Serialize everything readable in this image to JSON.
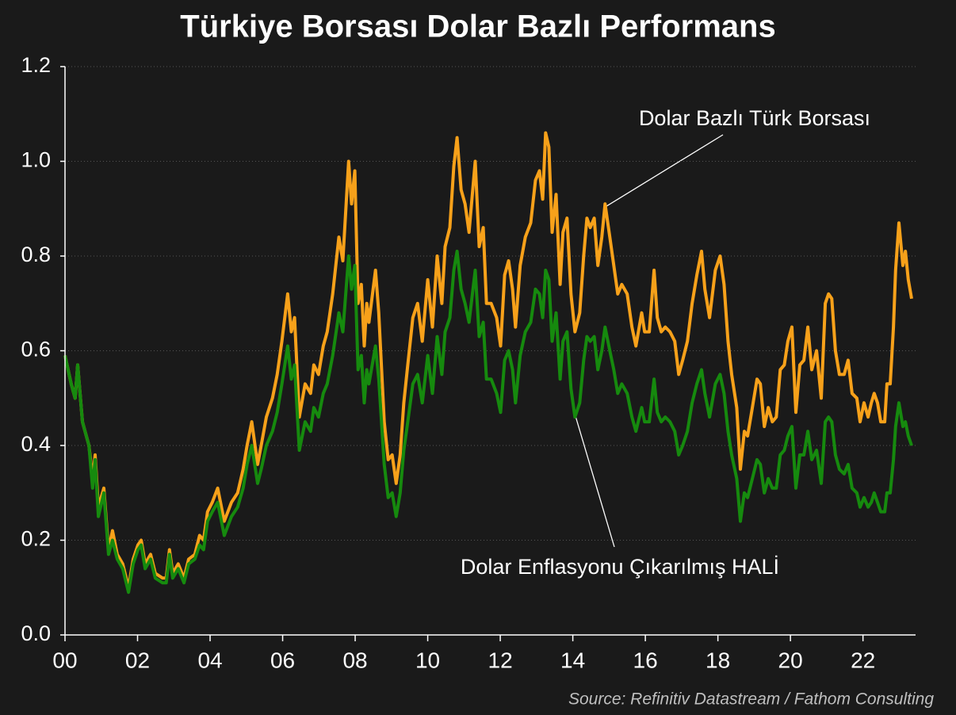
{
  "chart_data": {
    "type": "line",
    "title": "Türkiye Borsası Dolar Bazlı Performans",
    "source": "Source: Refinitiv Datastream / Fathom Consulting",
    "x": [
      2000.0,
      2000.17,
      2000.28,
      2000.35,
      2000.48,
      2000.66,
      2000.76,
      2000.83,
      2000.92,
      2001.07,
      2001.2,
      2001.31,
      2001.44,
      2001.59,
      2001.75,
      2001.88,
      2002.01,
      2002.1,
      2002.21,
      2002.36,
      2002.49,
      2002.69,
      2002.79,
      2002.88,
      2002.97,
      2003.12,
      2003.28,
      2003.41,
      2003.58,
      2003.71,
      2003.82,
      2003.93,
      2004.06,
      2004.21,
      2004.39,
      2004.59,
      2004.76,
      2004.91,
      2005.02,
      2005.15,
      2005.31,
      2005.41,
      2005.55,
      2005.72,
      2005.85,
      2005.98,
      2006.14,
      2006.24,
      2006.33,
      2006.46,
      2006.62,
      2006.77,
      2006.86,
      2006.99,
      2007.12,
      2007.23,
      2007.38,
      2007.55,
      2007.66,
      2007.82,
      2007.9,
      2007.99,
      2008.08,
      2008.17,
      2008.25,
      2008.32,
      2008.38,
      2008.56,
      2008.65,
      2008.8,
      2008.91,
      2009.02,
      2009.13,
      2009.24,
      2009.34,
      2009.45,
      2009.59,
      2009.72,
      2009.85,
      2010.0,
      2010.13,
      2010.26,
      2010.39,
      2010.48,
      2010.61,
      2010.72,
      2010.81,
      2010.92,
      2011.03,
      2011.14,
      2011.31,
      2011.42,
      2011.53,
      2011.62,
      2011.75,
      2011.9,
      2012.01,
      2012.12,
      2012.23,
      2012.34,
      2012.42,
      2012.55,
      2012.69,
      2012.84,
      2012.97,
      2013.08,
      2013.17,
      2013.25,
      2013.34,
      2013.43,
      2013.54,
      2013.65,
      2013.73,
      2013.84,
      2013.95,
      2014.06,
      2014.19,
      2014.3,
      2014.39,
      2014.48,
      2014.59,
      2014.69,
      2014.8,
      2014.89,
      2015.02,
      2015.13,
      2015.24,
      2015.35,
      2015.5,
      2015.63,
      2015.74,
      2015.9,
      2015.98,
      2016.11,
      2016.24,
      2016.33,
      2016.44,
      2016.55,
      2016.68,
      2016.81,
      2016.92,
      2017.03,
      2017.16,
      2017.29,
      2017.42,
      2017.55,
      2017.64,
      2017.77,
      2017.93,
      2018.06,
      2018.17,
      2018.28,
      2018.38,
      2018.52,
      2018.62,
      2018.73,
      2018.82,
      2018.95,
      2019.08,
      2019.17,
      2019.28,
      2019.39,
      2019.5,
      2019.61,
      2019.72,
      2019.83,
      2019.93,
      2020.04,
      2020.15,
      2020.26,
      2020.37,
      2020.48,
      2020.59,
      2020.72,
      2020.85,
      2020.96,
      2021.05,
      2021.14,
      2021.24,
      2021.35,
      2021.48,
      2021.59,
      2021.7,
      2021.83,
      2021.92,
      2022.03,
      2022.14,
      2022.23,
      2022.31,
      2022.4,
      2022.49,
      2022.6,
      2022.66,
      2022.75,
      2022.84,
      2022.9,
      2022.99,
      2023.1,
      2023.17,
      2023.25,
      2023.34
    ],
    "series": [
      {
        "name": "Dolar Bazlı Türk Borsası",
        "color": "#f7a11a",
        "values": [
          0.59,
          0.53,
          0.5,
          0.57,
          0.45,
          0.4,
          0.33,
          0.38,
          0.27,
          0.31,
          0.18,
          0.22,
          0.17,
          0.15,
          0.1,
          0.16,
          0.19,
          0.2,
          0.15,
          0.17,
          0.13,
          0.12,
          0.12,
          0.18,
          0.13,
          0.15,
          0.12,
          0.16,
          0.17,
          0.21,
          0.2,
          0.26,
          0.28,
          0.31,
          0.24,
          0.28,
          0.3,
          0.35,
          0.4,
          0.45,
          0.36,
          0.4,
          0.46,
          0.5,
          0.55,
          0.62,
          0.72,
          0.64,
          0.67,
          0.46,
          0.53,
          0.51,
          0.57,
          0.55,
          0.61,
          0.64,
          0.72,
          0.84,
          0.79,
          1.0,
          0.91,
          0.98,
          0.7,
          0.74,
          0.61,
          0.7,
          0.66,
          0.77,
          0.68,
          0.45,
          0.37,
          0.38,
          0.32,
          0.38,
          0.49,
          0.57,
          0.67,
          0.7,
          0.62,
          0.75,
          0.65,
          0.8,
          0.7,
          0.82,
          0.86,
          0.99,
          1.05,
          0.94,
          0.91,
          0.85,
          1.0,
          0.82,
          0.86,
          0.7,
          0.7,
          0.67,
          0.61,
          0.76,
          0.79,
          0.73,
          0.65,
          0.78,
          0.84,
          0.87,
          0.96,
          0.98,
          0.92,
          1.06,
          1.03,
          0.85,
          0.93,
          0.74,
          0.85,
          0.88,
          0.72,
          0.64,
          0.68,
          0.8,
          0.88,
          0.86,
          0.88,
          0.78,
          0.84,
          0.91,
          0.84,
          0.78,
          0.72,
          0.74,
          0.72,
          0.65,
          0.61,
          0.68,
          0.64,
          0.64,
          0.77,
          0.67,
          0.64,
          0.65,
          0.64,
          0.62,
          0.55,
          0.58,
          0.62,
          0.7,
          0.76,
          0.81,
          0.73,
          0.67,
          0.77,
          0.8,
          0.74,
          0.62,
          0.55,
          0.48,
          0.35,
          0.43,
          0.42,
          0.48,
          0.54,
          0.53,
          0.44,
          0.48,
          0.45,
          0.46,
          0.56,
          0.57,
          0.62,
          0.65,
          0.47,
          0.57,
          0.58,
          0.65,
          0.56,
          0.6,
          0.5,
          0.7,
          0.72,
          0.71,
          0.6,
          0.55,
          0.55,
          0.58,
          0.51,
          0.5,
          0.45,
          0.49,
          0.46,
          0.49,
          0.51,
          0.49,
          0.45,
          0.45,
          0.53,
          0.53,
          0.65,
          0.77,
          0.87,
          0.78,
          0.81,
          0.75,
          0.71
        ]
      },
      {
        "name": "Dolar Enflasyonu Çıkarılmış HALİ",
        "color": "#168a0e",
        "values": [
          0.59,
          0.53,
          0.5,
          0.57,
          0.45,
          0.4,
          0.31,
          0.37,
          0.25,
          0.3,
          0.17,
          0.2,
          0.16,
          0.14,
          0.09,
          0.15,
          0.18,
          0.19,
          0.14,
          0.16,
          0.12,
          0.11,
          0.11,
          0.17,
          0.12,
          0.14,
          0.11,
          0.15,
          0.16,
          0.19,
          0.18,
          0.24,
          0.26,
          0.28,
          0.21,
          0.25,
          0.27,
          0.31,
          0.36,
          0.4,
          0.32,
          0.35,
          0.4,
          0.43,
          0.47,
          0.53,
          0.61,
          0.54,
          0.57,
          0.39,
          0.45,
          0.43,
          0.48,
          0.46,
          0.51,
          0.53,
          0.59,
          0.68,
          0.64,
          0.8,
          0.73,
          0.78,
          0.56,
          0.59,
          0.49,
          0.56,
          0.53,
          0.61,
          0.54,
          0.36,
          0.29,
          0.3,
          0.25,
          0.3,
          0.39,
          0.45,
          0.53,
          0.55,
          0.49,
          0.59,
          0.51,
          0.63,
          0.55,
          0.64,
          0.67,
          0.77,
          0.81,
          0.73,
          0.7,
          0.66,
          0.77,
          0.63,
          0.66,
          0.54,
          0.54,
          0.51,
          0.47,
          0.58,
          0.6,
          0.56,
          0.49,
          0.59,
          0.64,
          0.66,
          0.73,
          0.72,
          0.67,
          0.77,
          0.75,
          0.62,
          0.68,
          0.54,
          0.62,
          0.64,
          0.52,
          0.46,
          0.49,
          0.58,
          0.63,
          0.62,
          0.63,
          0.56,
          0.6,
          0.65,
          0.6,
          0.56,
          0.51,
          0.53,
          0.51,
          0.46,
          0.43,
          0.48,
          0.45,
          0.45,
          0.54,
          0.47,
          0.45,
          0.46,
          0.45,
          0.43,
          0.38,
          0.4,
          0.43,
          0.49,
          0.53,
          0.56,
          0.51,
          0.46,
          0.53,
          0.55,
          0.51,
          0.43,
          0.38,
          0.33,
          0.24,
          0.3,
          0.29,
          0.33,
          0.37,
          0.36,
          0.3,
          0.33,
          0.31,
          0.31,
          0.38,
          0.39,
          0.42,
          0.44,
          0.31,
          0.38,
          0.38,
          0.43,
          0.37,
          0.39,
          0.32,
          0.45,
          0.46,
          0.45,
          0.38,
          0.35,
          0.34,
          0.36,
          0.31,
          0.3,
          0.27,
          0.29,
          0.27,
          0.28,
          0.3,
          0.28,
          0.26,
          0.26,
          0.3,
          0.3,
          0.37,
          0.44,
          0.49,
          0.44,
          0.45,
          0.42,
          0.4
        ]
      }
    ],
    "xlim": [
      2000,
      2023.45
    ],
    "xticks": [
      {
        "value": 2000,
        "label": "00"
      },
      {
        "value": 2002,
        "label": "02"
      },
      {
        "value": 2004,
        "label": "04"
      },
      {
        "value": 2006,
        "label": "06"
      },
      {
        "value": 2008,
        "label": "08"
      },
      {
        "value": 2010,
        "label": "10"
      },
      {
        "value": 2012,
        "label": "12"
      },
      {
        "value": 2014,
        "label": "14"
      },
      {
        "value": 2016,
        "label": "16"
      },
      {
        "value": 2018,
        "label": "18"
      },
      {
        "value": 2020,
        "label": "20"
      },
      {
        "value": 2022,
        "label": "22"
      }
    ],
    "ylim": [
      0,
      1.2
    ],
    "yticks": [
      {
        "value": 0,
        "label": "0.0"
      },
      {
        "value": 0.2,
        "label": "0.2"
      },
      {
        "value": 0.4,
        "label": "0.4"
      },
      {
        "value": 0.6,
        "label": "0.6"
      },
      {
        "value": 0.8,
        "label": "0.8"
      },
      {
        "value": 1.0,
        "label": "1.0"
      },
      {
        "value": 1.2,
        "label": "1.2"
      }
    ],
    "grid": true
  }
}
